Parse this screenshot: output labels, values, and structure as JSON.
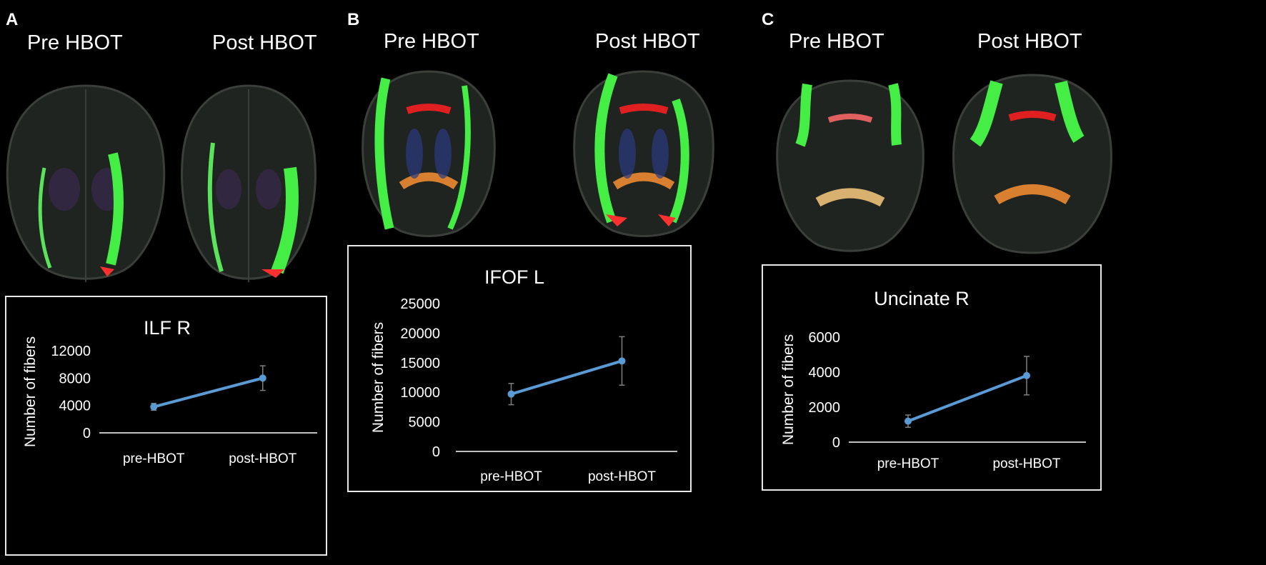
{
  "panels": [
    {
      "letter": "A",
      "brain_labels": [
        "Pre HBOT",
        "Post HBOT"
      ],
      "chart_data": {
        "type": "line",
        "title": "ILF R",
        "categories": [
          "pre-HBOT",
          "post-HBOT"
        ],
        "values": [
          3800,
          8000
        ],
        "error": [
          500,
          1800
        ],
        "ylabel": "Number of fibers",
        "xlabel": "",
        "yticks": [
          0,
          4000,
          8000,
          12000
        ],
        "ytick_labels": [
          "0",
          "4000",
          "8000",
          "12000"
        ],
        "ylim": [
          0,
          12000
        ],
        "color": "#5b9bd5"
      }
    },
    {
      "letter": "B",
      "brain_labels": [
        "Pre HBOT",
        "Post HBOT"
      ],
      "chart_data": {
        "type": "line",
        "title": "IFOF L",
        "categories": [
          "pre-HBOT",
          "post-HBOT"
        ],
        "values": [
          9700,
          15300
        ],
        "error": [
          1800,
          4100
        ],
        "ylabel": "Number of fibers",
        "xlabel": "",
        "yticks": [
          0,
          5000,
          10000,
          15000,
          20000,
          25000
        ],
        "ytick_labels": [
          "0",
          "5000",
          "10000",
          "15000",
          "20000",
          "25000"
        ],
        "ylim": [
          0,
          25000
        ],
        "color": "#5b9bd5"
      }
    },
    {
      "letter": "C",
      "brain_labels": [
        "Pre HBOT",
        "Post HBOT"
      ],
      "chart_data": {
        "type": "line",
        "title": "Uncinate R",
        "categories": [
          "pre-HBOT",
          "post-HBOT"
        ],
        "values": [
          1200,
          3800
        ],
        "error": [
          350,
          1100
        ],
        "ylabel": "Number of fibers",
        "xlabel": "",
        "yticks": [
          0,
          2000,
          4000,
          6000
        ],
        "ytick_labels": [
          "0",
          "2000",
          "4000",
          "6000"
        ],
        "ylim": [
          0,
          6000
        ],
        "color": "#5b9bd5"
      }
    }
  ]
}
